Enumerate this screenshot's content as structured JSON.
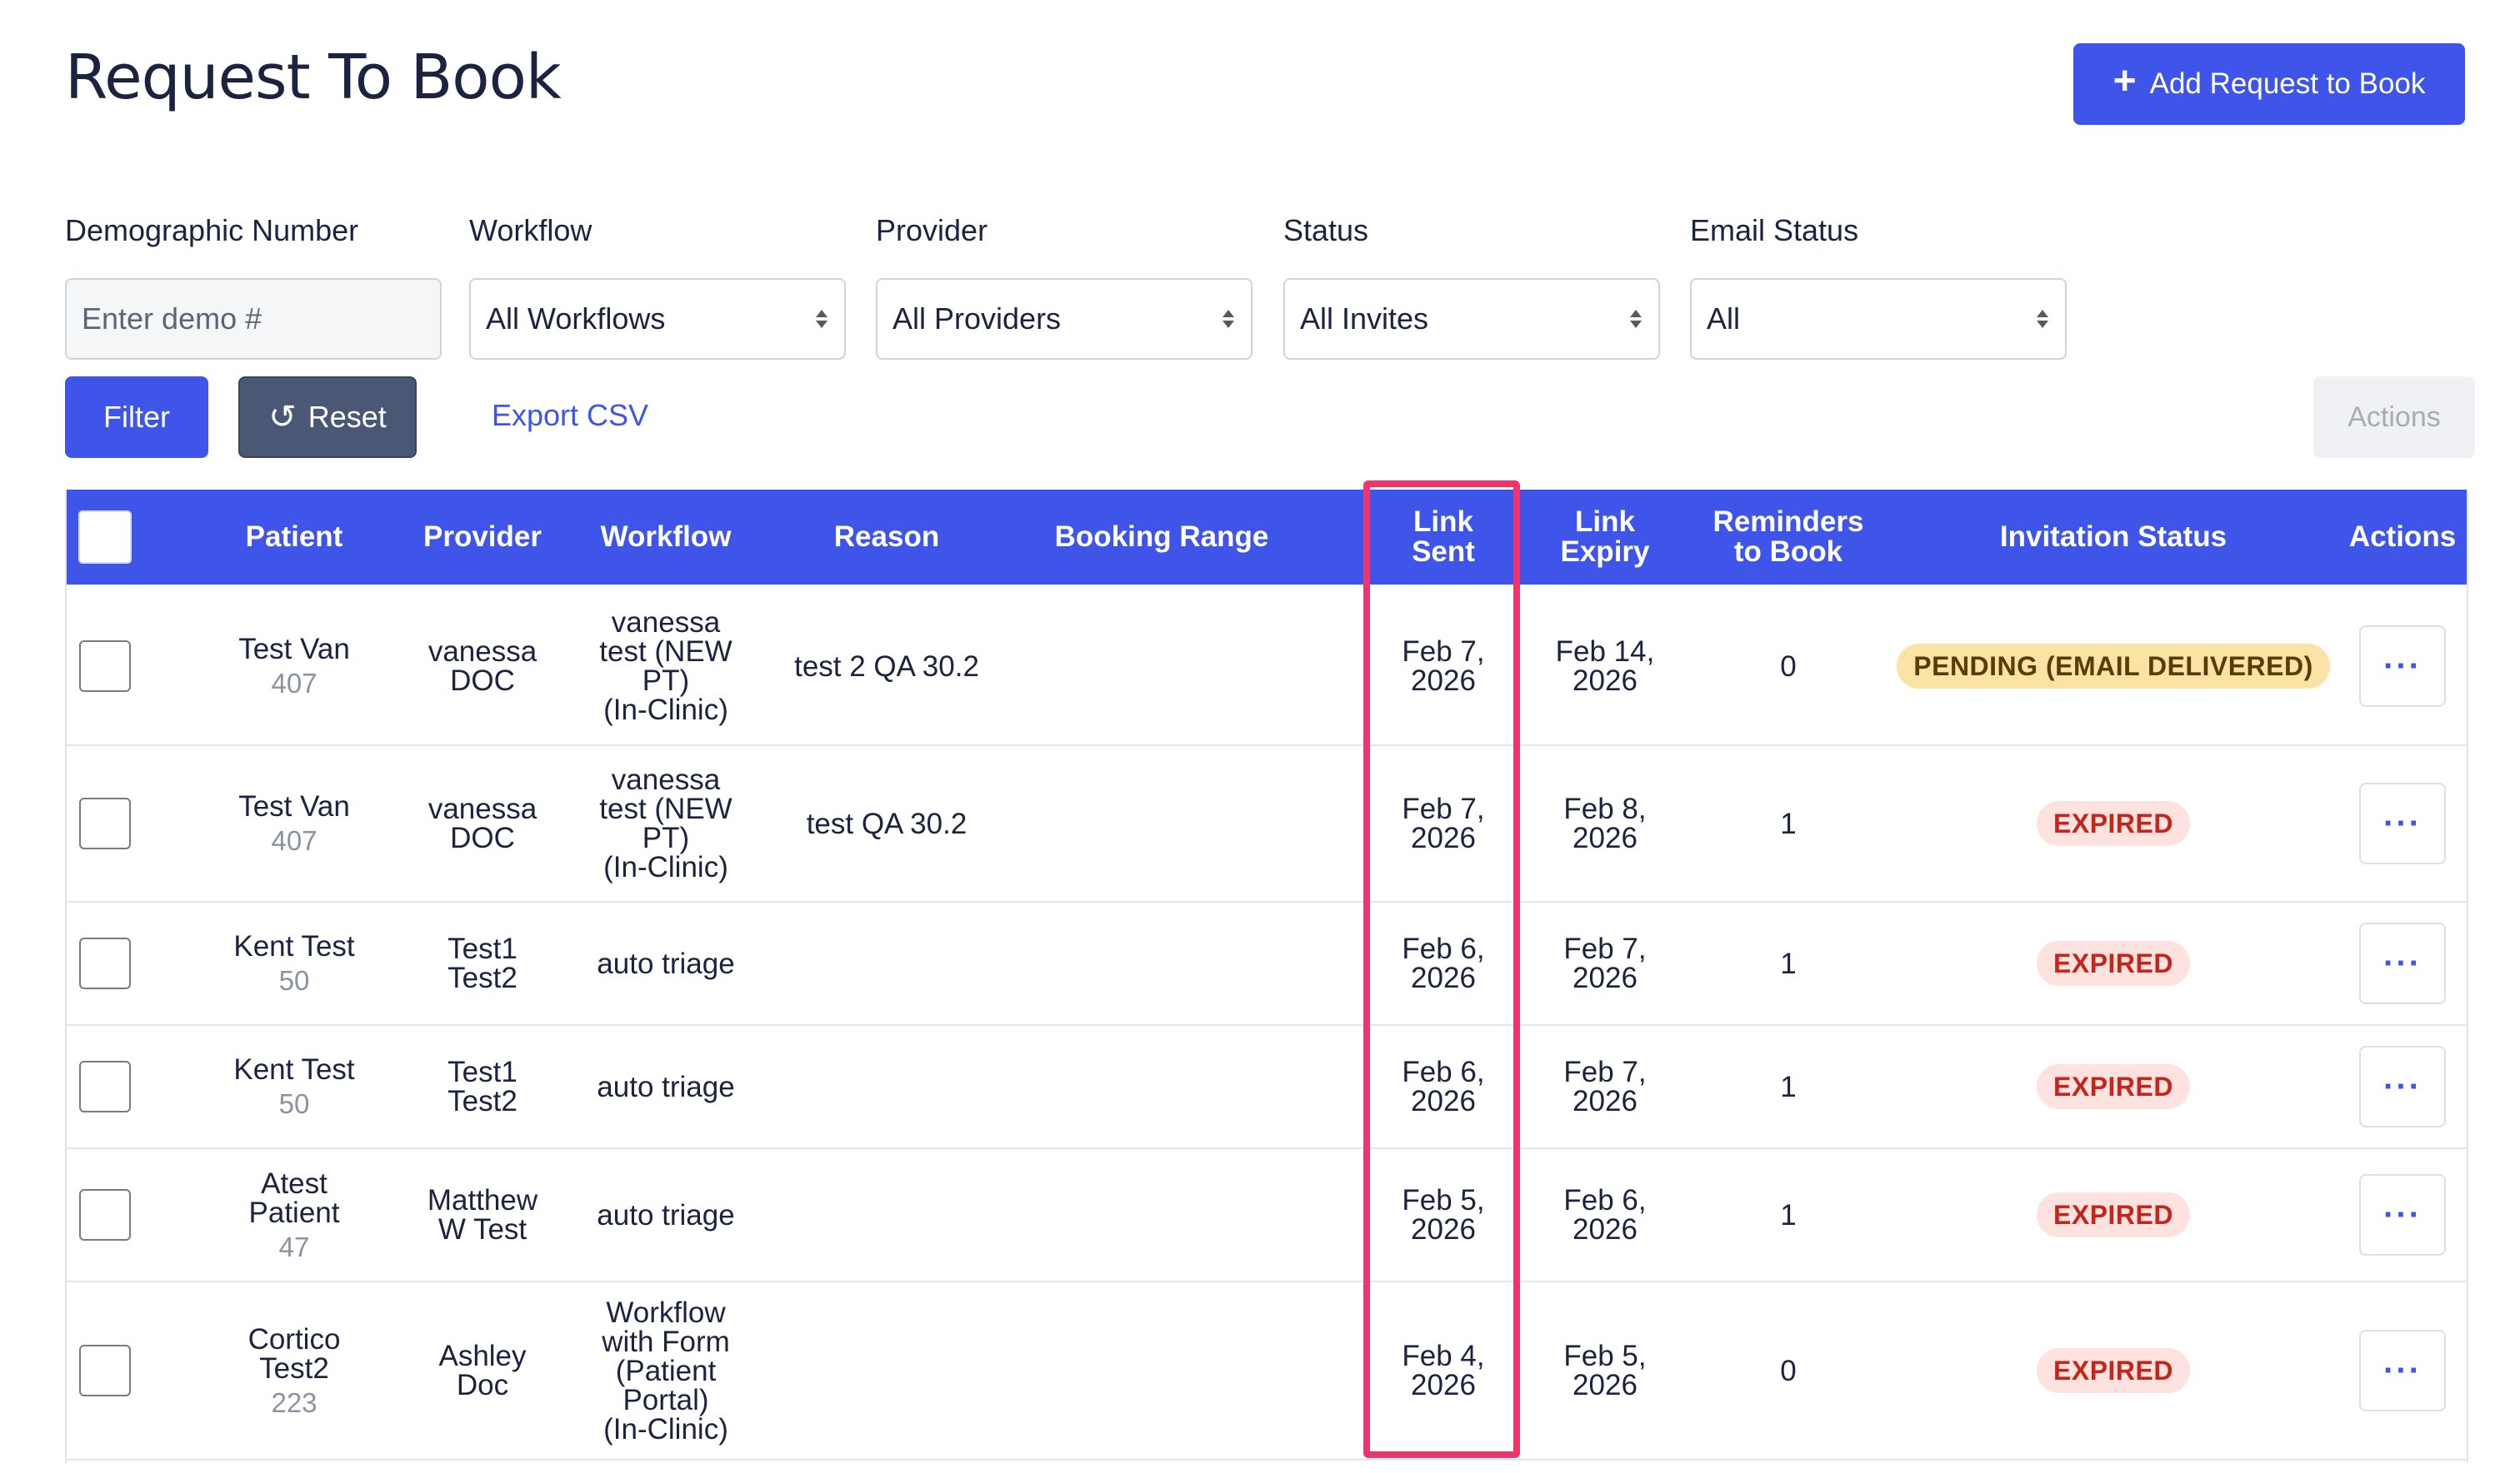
{
  "page": {
    "title": "Request To Book",
    "add_button_label": "Add Request to Book"
  },
  "filters": {
    "demographic": {
      "label": "Demographic Number",
      "placeholder": "Enter demo #",
      "value": ""
    },
    "workflow": {
      "label": "Workflow",
      "selected": "All Workflows"
    },
    "provider": {
      "label": "Provider",
      "selected": "All Providers"
    },
    "status": {
      "label": "Status",
      "selected": "All Invites"
    },
    "email_status": {
      "label": "Email Status",
      "selected": "All"
    }
  },
  "toolbar": {
    "filter_label": "Filter",
    "reset_label": "Reset",
    "export_label": "Export CSV",
    "actions_label": "Actions"
  },
  "table": {
    "headers": {
      "patient": "Patient",
      "provider": "Provider",
      "workflow": "Workflow",
      "reason": "Reason",
      "booking_range": "Booking Range",
      "link_sent": "Link\nSent",
      "link_expiry": "Link\nExpiry",
      "reminders": "Reminders\nto Book",
      "invitation_status": "Invitation Status",
      "actions": "Actions"
    },
    "rows": [
      {
        "patient": "Test Van",
        "demo": "407",
        "provider": "vanessa\nDOC",
        "workflow": "vanessa\ntest (NEW\nPT)\n(In-Clinic)",
        "reason": "test 2 QA 30.2",
        "booking_range": "",
        "link_sent": "Feb 7,\n2026",
        "link_expiry": "Feb 14,\n2026",
        "reminders": "0",
        "status": "PENDING (EMAIL DELIVERED)",
        "status_type": "pending"
      },
      {
        "patient": "Test Van",
        "demo": "407",
        "provider": "vanessa\nDOC",
        "workflow": "vanessa\ntest (NEW\nPT)\n(In-Clinic)",
        "reason": "test QA 30.2",
        "booking_range": "",
        "link_sent": "Feb 7,\n2026",
        "link_expiry": "Feb 8,\n2026",
        "reminders": "1",
        "status": "EXPIRED",
        "status_type": "expired"
      },
      {
        "patient": "Kent Test",
        "demo": "50",
        "provider": "Test1\nTest2",
        "workflow": "auto triage",
        "reason": "",
        "booking_range": "",
        "link_sent": "Feb 6,\n2026",
        "link_expiry": "Feb 7,\n2026",
        "reminders": "1",
        "status": "EXPIRED",
        "status_type": "expired"
      },
      {
        "patient": "Kent Test",
        "demo": "50",
        "provider": "Test1\nTest2",
        "workflow": "auto triage",
        "reason": "",
        "booking_range": "",
        "link_sent": "Feb 6,\n2026",
        "link_expiry": "Feb 7,\n2026",
        "reminders": "1",
        "status": "EXPIRED",
        "status_type": "expired"
      },
      {
        "patient": "Atest\nPatient",
        "demo": "47",
        "provider": "Matthew\nW Test",
        "workflow": "auto triage",
        "reason": "",
        "booking_range": "",
        "link_sent": "Feb 5,\n2026",
        "link_expiry": "Feb 6,\n2026",
        "reminders": "1",
        "status": "EXPIRED",
        "status_type": "expired"
      },
      {
        "patient": "Cortico\nTest2",
        "demo": "223",
        "provider": "Ashley\nDoc",
        "workflow": "Workflow\nwith Form\n(Patient\nPortal)\n(In-Clinic)",
        "reason": "",
        "booking_range": "",
        "link_sent": "Feb 4,\n2026",
        "link_expiry": "Feb 5,\n2026",
        "reminders": "0",
        "status": "EXPIRED",
        "status_type": "expired"
      }
    ]
  },
  "colors": {
    "primary": "#3f55ea",
    "secondary": "#4a5775",
    "highlight": "#f0346e",
    "pending_bg": "#fbe3a6",
    "expired_bg": "#fde2df",
    "expired_text": "#c4261c"
  },
  "icons": {
    "add": "plus-icon",
    "reset": "rotate-ccw-icon",
    "row_actions": "ellipsis-icon",
    "select": "sort-arrows-icon"
  }
}
